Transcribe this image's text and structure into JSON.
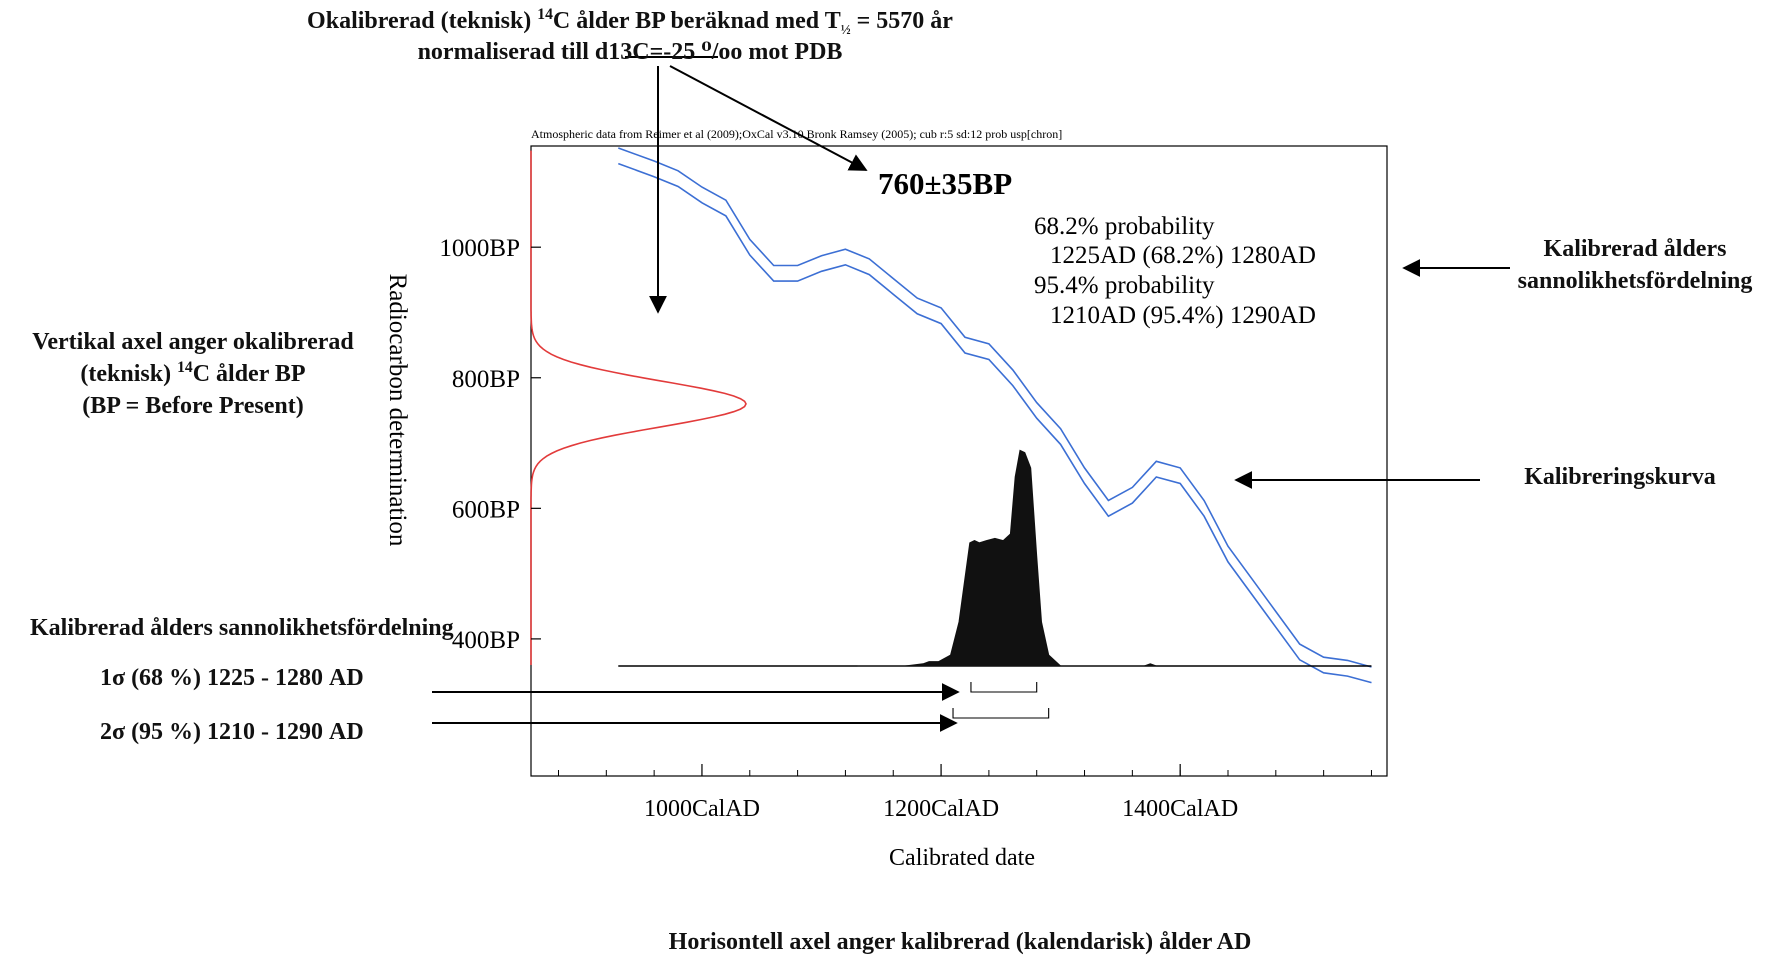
{
  "annotations": {
    "top_title": {
      "l1_pre": "Okalibrerad (teknisk) ",
      "l1_sup": "14",
      "l1_mid": "C ålder BP beräknad med T",
      "l1_sub": "½",
      "l1_post": " = 5570 år",
      "l2": "normaliserad till d13C=-25 ⁰/oo mot PDB"
    },
    "left_axis_note": {
      "l1": "Vertikal axel anger okalibrerad",
      "l2_pre": "(teknisk) ",
      "l2_sup": "14",
      "l2_post": "C ålder BP",
      "l3": "(BP = Before Present)"
    },
    "right_dist_note": {
      "l1": "Kalibrerad ålders",
      "l2": "sannolikhetsfördelning"
    },
    "right_curve_note": "Kalibreringskurva",
    "sigma_block": {
      "heading": "Kalibrerad ålders sannolikhetsfördelning",
      "one_sigma_sym": "1σ",
      "one_sigma_text": " (68 %)  1225 - 1280 AD",
      "two_sigma_sym": "2σ",
      "two_sigma_text": " (95 %)  1210 - 1290 AD"
    },
    "bottom_note": "Horisontell axel anger kalibrerad (kalendarisk) ålder AD"
  },
  "chart_data": {
    "type": "line",
    "header": "Atmospheric data from Reimer et al (2009);OxCal v3.10 Bronk Ramsey (2005); cub r:5 sd:12 prob usp[chron]",
    "measurement": "760±35BP",
    "probability_text": [
      "68.2% probability",
      "1225AD (68.2%) 1280AD",
      "95.4% probability",
      "1210AD (95.4%) 1290AD"
    ],
    "xlabel": "Calibrated date",
    "ylabel": "Radiocarbon determination",
    "xlim": [
      857,
      1573
    ],
    "ylim": [
      190,
      1155
    ],
    "x_ticks_major": [
      1000,
      1200,
      1400
    ],
    "x_tick_labels": [
      "1000CalAD",
      "1200CalAD",
      "1400CalAD"
    ],
    "x_ticks_minor_step": 40,
    "y_ticks": [
      400,
      600,
      800,
      1000
    ],
    "y_tick_labels": [
      "400BP",
      "600BP",
      "800BP",
      "1000BP"
    ],
    "measurement_bp": {
      "mean": 760,
      "sigma": 35
    },
    "calibration_curve": {
      "x": [
        930,
        960,
        980,
        1000,
        1020,
        1040,
        1060,
        1080,
        1100,
        1120,
        1140,
        1160,
        1180,
        1200,
        1220,
        1240,
        1260,
        1280,
        1300,
        1320,
        1340,
        1360,
        1380,
        1400,
        1420,
        1440,
        1460,
        1480,
        1500,
        1520,
        1540,
        1560
      ],
      "y": [
        1140,
        1120,
        1105,
        1080,
        1060,
        1000,
        960,
        960,
        975,
        985,
        970,
        940,
        910,
        895,
        850,
        840,
        800,
        750,
        710,
        650,
        600,
        620,
        660,
        650,
        600,
        530,
        480,
        430,
        380,
        360,
        355,
        345
      ],
      "band_halfwidth": 12
    },
    "calibrated_distribution": {
      "x": [
        1130,
        1170,
        1185,
        1190,
        1198,
        1208,
        1215,
        1220,
        1224,
        1228,
        1232,
        1238,
        1245,
        1252,
        1258,
        1262,
        1266,
        1270,
        1275,
        1280,
        1284,
        1290,
        1300,
        1370,
        1375,
        1380
      ],
      "density": [
        0.0,
        0.0,
        0.01,
        0.02,
        0.02,
        0.05,
        0.2,
        0.4,
        0.56,
        0.57,
        0.56,
        0.57,
        0.58,
        0.57,
        0.6,
        0.86,
        0.98,
        0.97,
        0.9,
        0.5,
        0.2,
        0.05,
        0.0,
        0.0,
        0.01,
        0.0
      ]
    },
    "ranges": [
      {
        "sigma": "68.2%",
        "from": 1225,
        "to": 1280
      },
      {
        "sigma": "95.4%",
        "from": 1210,
        "to": 1290
      }
    ],
    "colors": {
      "curve": "#3c6fd4",
      "measurement": "#e23b3b",
      "distribution": "#111111"
    }
  }
}
